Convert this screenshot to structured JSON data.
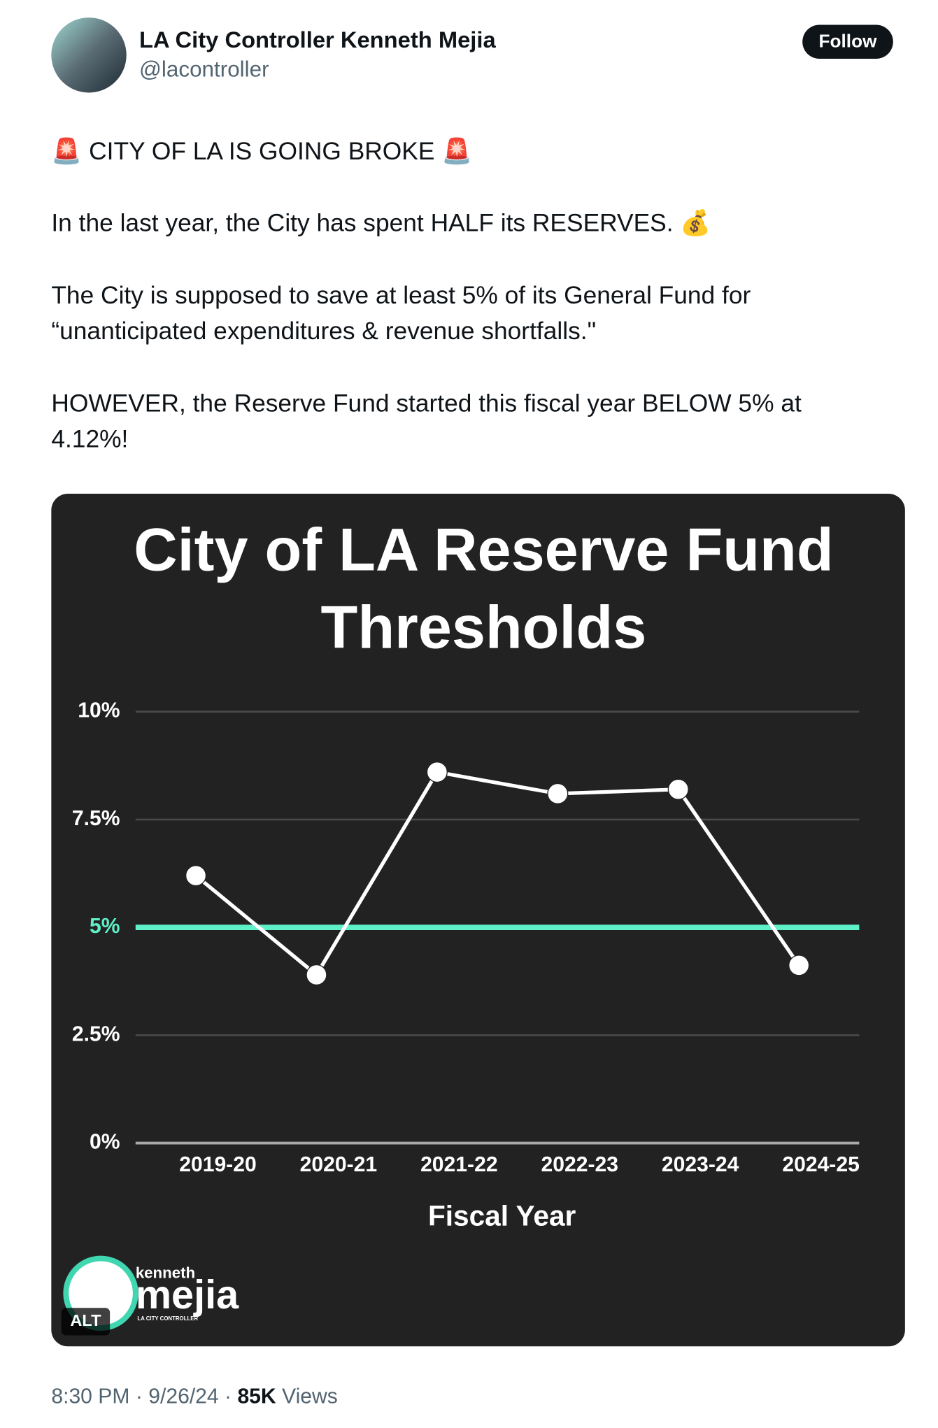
{
  "tweet": {
    "name": "LA City Controller Kenneth Mejia",
    "handle": "@lacontroller",
    "follow": "Follow",
    "lines": [
      "🚨 CITY OF LA IS GOING BROKE 🚨",
      "In the last year, the City has spent HALF its RESERVES. 💰",
      "The City is supposed to save at least 5% of its General Fund for",
      "“unanticipated expenditures & revenue shortfalls.\"",
      "HOWEVER, the Reserve Fund started this fiscal year BELOW 5% at",
      "4.12%!"
    ],
    "timestamp": "8:30 PM · 9/26/24 · ",
    "views": "85K",
    "views_label": " Views",
    "alt": "ALT",
    "logo": {
      "small": "kenneth",
      "big": "mejia",
      "sub": "LA CITY CONTROLLER"
    }
  },
  "chart_data": {
    "type": "line",
    "title": [
      "City of LA Reserve Fund",
      "Thresholds"
    ],
    "x_label": "Fiscal Year",
    "categories": [
      "2019-20",
      "2020-21",
      "2021-22",
      "2022-23",
      "2023-24",
      "2024-25"
    ],
    "series": [
      {
        "name": "Reserve Fund",
        "color": "#ffffff",
        "values": [
          6.2,
          3.9,
          8.6,
          8.1,
          8.2,
          4.12
        ]
      }
    ],
    "ylim": [
      0,
      10
    ],
    "yticks": [
      {
        "value": 0,
        "label": "0%"
      },
      {
        "value": 2.5,
        "label": "2.5%"
      },
      {
        "value": 5,
        "label": "5%"
      },
      {
        "value": 7.5,
        "label": "7.5%"
      },
      {
        "value": 10,
        "label": "10%"
      }
    ],
    "threshold": {
      "value": 5,
      "color": "#5ef0c6"
    },
    "grid": true
  }
}
